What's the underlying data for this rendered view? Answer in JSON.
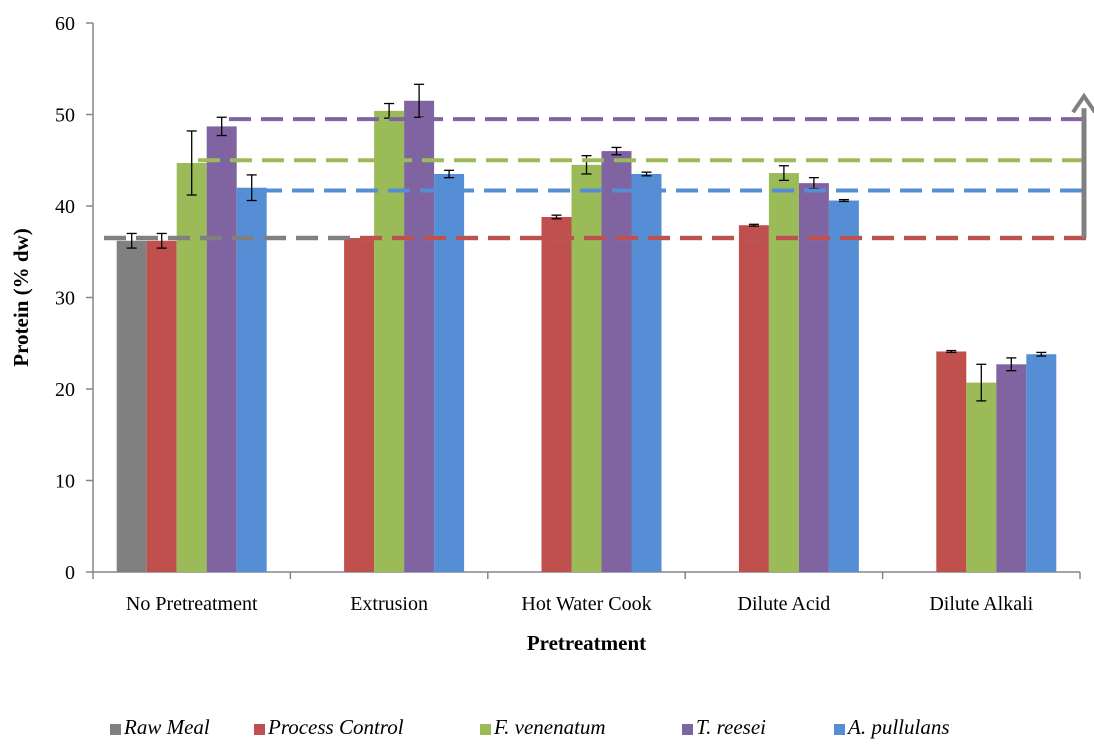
{
  "chart_data": {
    "type": "bar",
    "xlabel": "Pretreatment",
    "ylabel": "Protein (% dw)",
    "ylim": [
      0,
      60
    ],
    "yticks": [
      0,
      10,
      20,
      30,
      40,
      50,
      60
    ],
    "grid": false,
    "legend_position": "bottom",
    "categories": [
      "No Pretreatment",
      "Extrusion",
      "Hot Water Cook",
      "Dilute Acid",
      "Dilute Alkali"
    ],
    "series": [
      {
        "name": "Raw Meal",
        "color": "#808080",
        "values": [
          36.2,
          null,
          null,
          null,
          null
        ],
        "errors": [
          0.8,
          null,
          null,
          null,
          null
        ]
      },
      {
        "name": "Process Control",
        "color": "#c0504d",
        "values": [
          36.2,
          36.5,
          38.8,
          37.9,
          24.1
        ],
        "errors": [
          0.8,
          null,
          0.2,
          0.1,
          0.1
        ]
      },
      {
        "name": "F. venenatum",
        "color": "#9bbb59",
        "values": [
          44.7,
          50.4,
          44.5,
          43.6,
          20.7
        ],
        "errors": [
          3.5,
          0.8,
          1.0,
          0.8,
          2.0
        ]
      },
      {
        "name": "T. reesei",
        "color": "#8064a2",
        "values": [
          48.7,
          51.5,
          46.0,
          42.5,
          22.7
        ],
        "errors": [
          1.0,
          1.8,
          0.4,
          0.6,
          0.7
        ]
      },
      {
        "name": "A. pullulans",
        "color": "#558ed5",
        "values": [
          42.0,
          43.5,
          43.5,
          40.6,
          23.8
        ],
        "errors": [
          1.4,
          0.4,
          0.2,
          0.1,
          0.2
        ]
      }
    ],
    "reference_lines": [
      {
        "series": "T. reesei",
        "value": 49.5,
        "color": "#8064a2"
      },
      {
        "series": "F. venenatum",
        "value": 45.0,
        "color": "#9bbb59"
      },
      {
        "series": "A. pullulans",
        "value": 41.7,
        "color": "#558ed5"
      },
      {
        "series": "Raw Meal",
        "value": 36.5,
        "color": "#808080"
      },
      {
        "series": "Process Control",
        "value": 36.5,
        "color": "#c0504d"
      }
    ],
    "arrow": {
      "from": 36.5,
      "to": 52.0,
      "color": "#808080"
    }
  }
}
